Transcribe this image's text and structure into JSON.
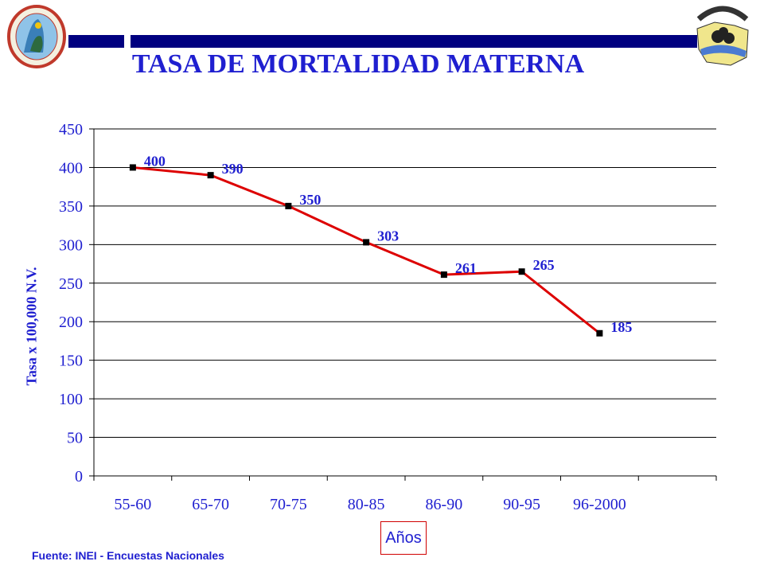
{
  "title": "TASA DE MORTALIDAD MATERNA",
  "source": "Fuente: INEI - Encuestas Nacionales",
  "colors": {
    "title": "#1f1fd0",
    "line": "#dd0000",
    "marker": "#000000",
    "bar": "#000080"
  },
  "logos": {
    "left": "GOBIERNO REGIONAL AYACUCHO",
    "right": "DIRECCION REGIONAL DE SALUD AYACUCHO"
  },
  "chart_data": {
    "type": "line",
    "title": "TASA DE MORTALIDAD MATERNA",
    "xlabel": "Años",
    "ylabel": "Tasa x 100,000 N.V.",
    "categories": [
      "55-60",
      "65-70",
      "70-75",
      "80-85",
      "86-90",
      "90-95",
      "96-2000"
    ],
    "series": [
      {
        "values": [
          400,
          390,
          350,
          303,
          261,
          265,
          185
        ],
        "labels": [
          "400",
          "390",
          "350",
          "303",
          "261",
          "265",
          "185"
        ]
      }
    ],
    "ylim": [
      0,
      450
    ],
    "yticks": [
      0,
      50,
      100,
      150,
      200,
      250,
      300,
      350,
      400,
      450
    ],
    "grid": true,
    "legend": "none"
  }
}
